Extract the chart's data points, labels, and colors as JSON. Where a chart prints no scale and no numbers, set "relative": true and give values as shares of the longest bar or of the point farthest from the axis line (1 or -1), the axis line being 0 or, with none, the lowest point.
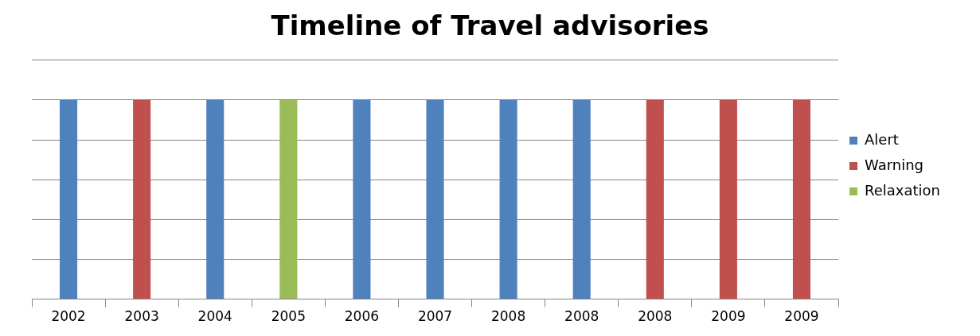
{
  "chart_data": {
    "type": "bar",
    "title": "Timeline of Travel advisories",
    "categories": [
      "2002",
      "2003",
      "2004",
      "2005",
      "2006",
      "2007",
      "2008",
      "2008",
      "2008",
      "2009",
      "2009"
    ],
    "series": [
      {
        "name": "Alert",
        "color": "#4f81bd",
        "values": [
          1,
          null,
          1,
          null,
          1,
          1,
          1,
          1,
          null,
          null,
          null
        ]
      },
      {
        "name": "Warning",
        "color": "#c0504d",
        "values": [
          null,
          1,
          null,
          null,
          null,
          null,
          null,
          null,
          1,
          1,
          1
        ]
      },
      {
        "name": "Relaxation",
        "color": "#9bbb59",
        "values": [
          null,
          null,
          null,
          1,
          null,
          null,
          null,
          null,
          null,
          null,
          null
        ]
      }
    ],
    "relative": true,
    "grid": "y",
    "legend": "right"
  }
}
